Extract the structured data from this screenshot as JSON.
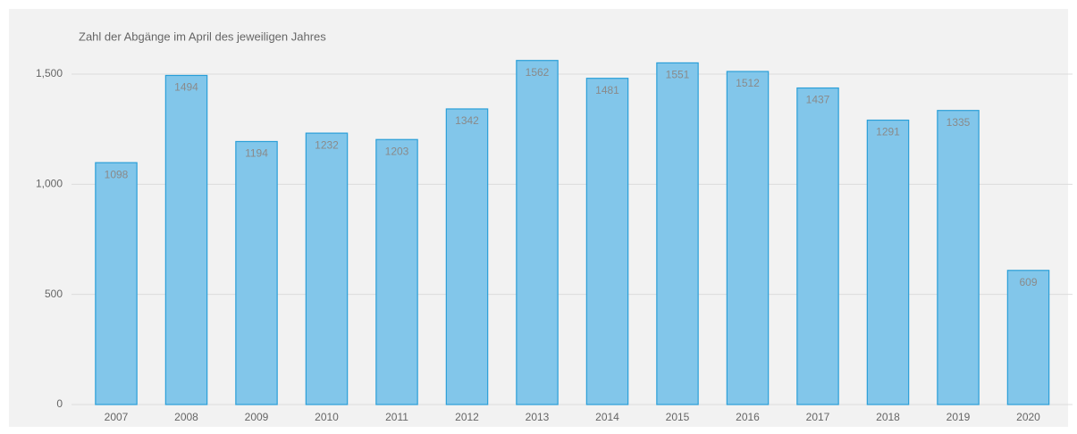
{
  "chart_data": {
    "type": "bar",
    "title": "Zahl der Abgänge im April des jeweiligen Jahres",
    "categories": [
      "2007",
      "2008",
      "2009",
      "2010",
      "2011",
      "2012",
      "2013",
      "2014",
      "2015",
      "2016",
      "2017",
      "2018",
      "2019",
      "2020"
    ],
    "values": [
      1098,
      1494,
      1194,
      1232,
      1203,
      1342,
      1562,
      1481,
      1551,
      1512,
      1437,
      1291,
      1335,
      609
    ],
    "color": "#82c6ea",
    "edge_color": "#2a9fd8",
    "ylim": [
      0,
      1500
    ],
    "yticks": [
      0,
      500,
      {
        "value": 1000,
        "label": "1,000"
      },
      {
        "value": 1500,
        "label": "1,500"
      }
    ],
    "grid": true
  }
}
